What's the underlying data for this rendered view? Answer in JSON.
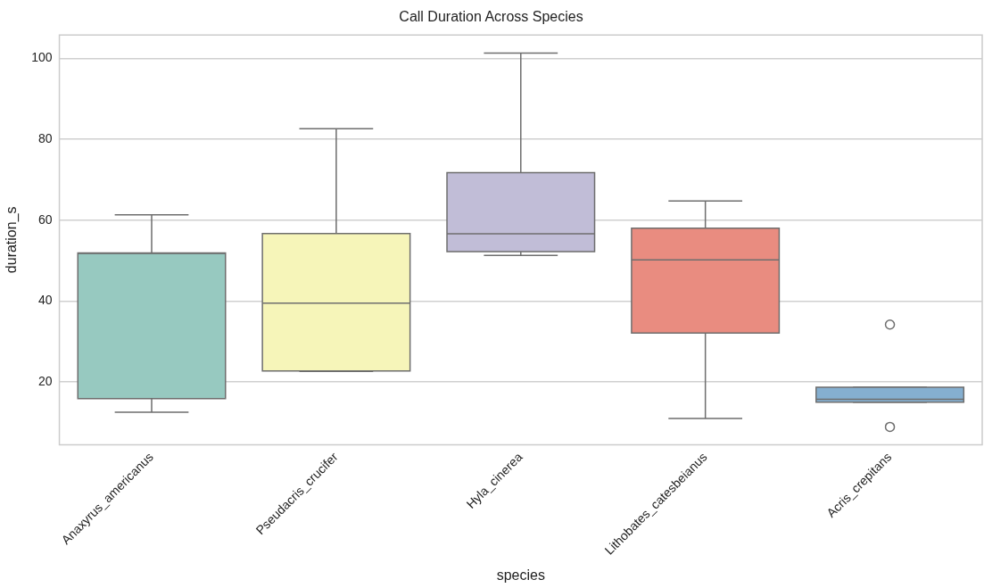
{
  "chart_data": {
    "type": "box",
    "title": "Call Duration Across Species",
    "xlabel": "species",
    "ylabel": "duration_s",
    "categories": [
      "Anaxyrus_americanus",
      "Pseudacris_crucifer",
      "Hyla_cinerea",
      "Lithobates_catesbeianus",
      "Acris_crepitans"
    ],
    "colors": [
      "#97c9c0",
      "#f6f5b9",
      "#c1bdd7",
      "#e98c80",
      "#85afd0"
    ],
    "boxes": [
      {
        "low": 12.5,
        "q1": 15.9,
        "median": 51.8,
        "q3": 51.9,
        "high": 61.3
      },
      {
        "low": 22.6,
        "q1": 22.75,
        "median": 39.5,
        "q3": 56.7,
        "high": 82.6
      },
      {
        "low": 51.3,
        "q1": 52.2,
        "median": 56.6,
        "q3": 71.75,
        "high": 101.25
      },
      {
        "low": 11,
        "q1": 32.1,
        "median": 50.2,
        "q3": 58,
        "high": 64.7
      },
      {
        "low": 15,
        "q1": 15,
        "median": 15.7,
        "q3": 18.7,
        "high": 18.7,
        "outliers": [
          34.2,
          8.9
        ]
      }
    ],
    "ylim": [
      4.5,
      105.75
    ],
    "yticks": [
      20,
      40,
      60,
      80,
      100
    ],
    "grid": "y",
    "legend": false
  }
}
